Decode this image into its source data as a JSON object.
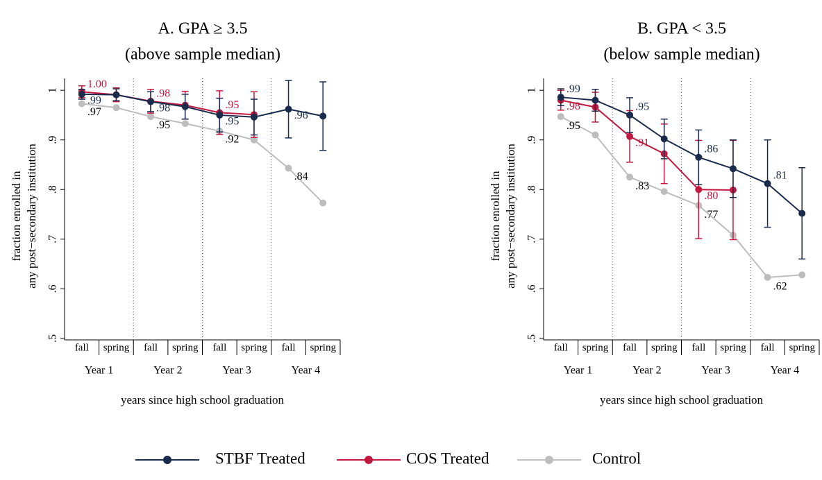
{
  "chart_data": [
    {
      "type": "line",
      "title": [
        "A. GPA ≥ 3.5",
        "(above sample median)"
      ],
      "ylabel": [
        "fraction enrolled in",
        "any post−secondary institution"
      ],
      "xlabel": "years since high school graduation",
      "categories": [
        "fall",
        "spring",
        "fall",
        "spring",
        "fall",
        "spring",
        "fall",
        "spring"
      ],
      "groups": [
        "Year 1",
        "Year 2",
        "Year 3",
        "Year 4"
      ],
      "ylim": [
        0.497,
        1.024
      ],
      "yticks": [
        {
          "value": 0.5,
          "label": ".5"
        },
        {
          "value": 0.6,
          "label": ".6"
        },
        {
          "value": 0.7,
          "label": ".7"
        },
        {
          "value": 0.8,
          "label": ".8"
        },
        {
          "value": 0.9,
          "label": ".9"
        },
        1
      ],
      "series": [
        {
          "name": "STBF Treated",
          "color": "#1a2b4c",
          "label_color": "#1a2b4c",
          "values": [
            0.992,
            0.991,
            0.977,
            0.967,
            0.95,
            0.946,
            0.962,
            0.948
          ],
          "errors": [
            0.01,
            0.012,
            0.02,
            0.025,
            0.034,
            0.036,
            0.058,
            0.069
          ],
          "value_labels": [
            ".99",
            null,
            ".98",
            null,
            ".95",
            null,
            ".96",
            null
          ]
        },
        {
          "name": "COS Treated",
          "color": "#c0183e",
          "label_color": "#c0183e",
          "values": [
            0.997,
            0.991,
            0.978,
            0.97,
            0.955,
            0.951,
            null,
            null
          ],
          "errors": [
            0.012,
            0.014,
            0.024,
            0.028,
            0.044,
            0.046,
            null,
            null
          ],
          "value_labels": [
            "1.00",
            null,
            ".98",
            null,
            ".95",
            null,
            null,
            null
          ]
        },
        {
          "name": "Control",
          "color": "#bdbdbd",
          "label_color": "#000000",
          "values": [
            0.973,
            0.965,
            0.947,
            0.933,
            0.918,
            0.9,
            0.843,
            0.773
          ],
          "value_labels": [
            ".97",
            null,
            ".95",
            null,
            ".92",
            null,
            ".84",
            null
          ]
        }
      ]
    },
    {
      "type": "line",
      "title": [
        "B. GPA < 3.5",
        "(below sample median)"
      ],
      "ylabel": [
        "fraction enrolled in",
        "any post−secondary institution"
      ],
      "xlabel": "years since high school graduation",
      "categories": [
        "fall",
        "spring",
        "fall",
        "spring",
        "fall",
        "spring",
        "fall",
        "spring"
      ],
      "groups": [
        "Year 1",
        "Year 2",
        "Year 3",
        "Year 4"
      ],
      "ylim": [
        0.497,
        1.024
      ],
      "yticks": [
        {
          "value": 0.5,
          "label": ".5"
        },
        {
          "value": 0.6,
          "label": ".6"
        },
        {
          "value": 0.7,
          "label": ".7"
        },
        {
          "value": 0.8,
          "label": ".8"
        },
        {
          "value": 0.9,
          "label": ".9"
        },
        1
      ],
      "series": [
        {
          "name": "STBF Treated",
          "color": "#1a2b4c",
          "label_color": "#1a2b4c",
          "values": [
            0.986,
            0.98,
            0.95,
            0.902,
            0.865,
            0.842,
            0.812,
            0.752
          ],
          "errors": [
            0.017,
            0.022,
            0.035,
            0.04,
            0.055,
            0.058,
            0.088,
            0.092
          ],
          "value_labels": [
            ".99",
            null,
            ".95",
            null,
            ".86",
            null,
            ".81",
            null
          ]
        },
        {
          "name": "COS Treated",
          "color": "#c0183e",
          "label_color": "#c0183e",
          "values": [
            0.98,
            0.966,
            0.907,
            0.872,
            0.8,
            0.799,
            null,
            null
          ],
          "errors": [
            0.02,
            0.03,
            0.052,
            0.06,
            0.099,
            0.1,
            null,
            null
          ],
          "value_labels": [
            ".98",
            null,
            ".91",
            null,
            ".80",
            null,
            null,
            null
          ]
        },
        {
          "name": "Control",
          "color": "#bdbdbd",
          "label_color": "#000000",
          "values": [
            0.947,
            0.91,
            0.825,
            0.796,
            0.768,
            0.708,
            0.623,
            0.628
          ],
          "value_labels": [
            ".95",
            null,
            ".83",
            null,
            ".77",
            null,
            ".62",
            null
          ]
        }
      ]
    }
  ]
}
